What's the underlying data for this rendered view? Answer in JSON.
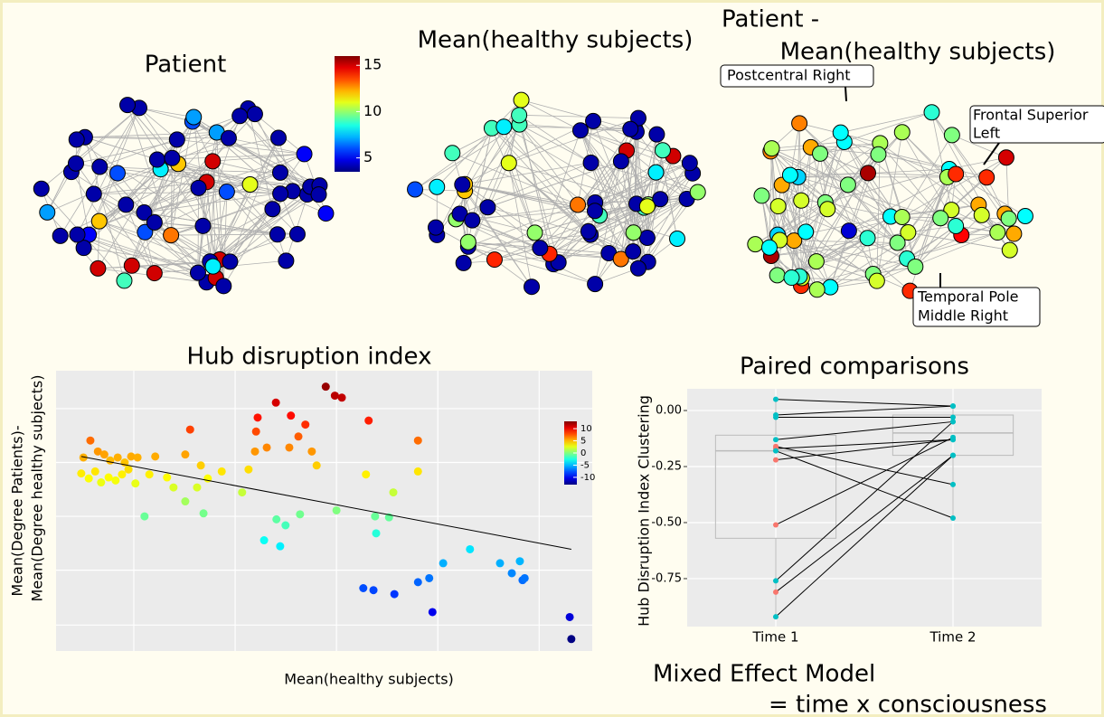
{
  "chart_data": [
    {
      "type": "network",
      "title": "Patient",
      "node_values": [
        4,
        4,
        5,
        4,
        15,
        4,
        7,
        4,
        12,
        4,
        4,
        8,
        4,
        15,
        4,
        4,
        5,
        6,
        4,
        4,
        15,
        4,
        7,
        4,
        4,
        11,
        4,
        4,
        15,
        4,
        6,
        4,
        4,
        4,
        9,
        4,
        4,
        15,
        4,
        4,
        7,
        4,
        13,
        4,
        4,
        5,
        4,
        4,
        15,
        4,
        6,
        4,
        4,
        12,
        4,
        4,
        8,
        4,
        4,
        15,
        4,
        4,
        6,
        4,
        4
      ],
      "colorbar": {
        "lim": [
          3.5,
          16
        ],
        "ticks": [
          5,
          10,
          15
        ]
      }
    },
    {
      "type": "network",
      "title": "Mean(healthy subjects)",
      "clim": [
        3.5,
        16
      ],
      "node_values": [
        4,
        4,
        9,
        8,
        13,
        14,
        4,
        10,
        7,
        4,
        9,
        4,
        11,
        15,
        4,
        4,
        8,
        10,
        4,
        4,
        12,
        4,
        9,
        8,
        4,
        4,
        13,
        4,
        4,
        10,
        9,
        4,
        6,
        4,
        4,
        11,
        4,
        4,
        10,
        4,
        4,
        4,
        15,
        9,
        4,
        12,
        4,
        10,
        4,
        4,
        8,
        4,
        14,
        4,
        4,
        9,
        4,
        10,
        4,
        4,
        4,
        11,
        4,
        4,
        9
      ]
    },
    {
      "type": "network",
      "title": [
        "Patient -",
        "Mean(healthy subjects)"
      ],
      "clim": [
        -12,
        12
      ],
      "node_values": [
        -3,
        2,
        0,
        5,
        8,
        -3,
        1,
        -2,
        5,
        0,
        -3,
        9,
        2,
        -4,
        1,
        5,
        0,
        -3,
        11,
        2,
        -2,
        0,
        6,
        -3,
        1,
        2,
        8,
        0,
        -4,
        1,
        5,
        -2,
        0,
        2,
        -3,
        10,
        1,
        0,
        5,
        -2,
        2,
        0,
        -3,
        1,
        8,
        0,
        2,
        -2,
        5,
        0,
        -10,
        1,
        2,
        -3,
        0,
        11,
        1,
        2,
        6,
        -3,
        0,
        2,
        8,
        1,
        -2
      ],
      "annotations": [
        [
          "Postcentral Right"
        ],
        [
          "Frontal Superior",
          "Left"
        ],
        [
          "Temporal Pole",
          "Middle Right"
        ]
      ]
    },
    {
      "type": "scatter",
      "title": "Hub disruption index",
      "xlabel": "Mean(healthy subjects)",
      "ylabel": [
        "Mean(Degree Patients)-",
        "Mean(Degree healthy subjects)"
      ],
      "xlim": [
        0,
        100
      ],
      "ylim": [
        -14.1,
        14
      ],
      "xticks": [
        14.5,
        33.4,
        52.3,
        71.2,
        90.1
      ],
      "yticks": [
        10.2,
        4.8,
        -0.6,
        -6,
        -11.5
      ],
      "grid": true,
      "x": [
        5.1,
        6.4,
        7.8,
        9.0,
        10.1,
        11.5,
        12.8,
        14.0,
        15.2,
        4.7,
        6.1,
        7.3,
        8.4,
        9.8,
        11.1,
        12.3,
        13.5,
        14.8,
        17.4,
        18.5,
        20.7,
        21.9,
        24.1,
        26.3,
        27.0,
        28.3,
        30.9,
        25.0,
        16.5,
        24.1,
        27.5,
        34.7,
        35.9,
        37.3,
        37.1,
        37.6,
        41.0,
        39.3,
        43.5,
        45.2,
        46.5,
        47.7,
        43.8,
        50.3,
        52.0,
        53.3,
        48.6,
        52.3,
        58.3,
        57.8,
        62.9,
        67.5,
        67.5,
        59.5,
        62.1,
        41.1,
        42.8,
        45.5,
        38.8,
        41.8,
        59.7,
        57.3,
        59.2,
        63.1,
        67.5,
        69.6,
        72.2,
        77.2,
        70.2,
        82.8,
        85.0,
        86.5,
        87.0,
        87.4,
        95.8,
        96.1
      ],
      "values": [
        5.3,
        7.0,
        5.9,
        5.6,
        5.0,
        5.3,
        4.8,
        5.4,
        5.3,
        3.7,
        3.2,
        3.9,
        2.8,
        3.3,
        3.0,
        3.6,
        4.1,
        2.7,
        3.6,
        5.4,
        3.3,
        2.3,
        5.6,
        2.3,
        4.5,
        3.2,
        3.9,
        8.1,
        -0.6,
        0.9,
        -0.3,
        1.8,
        4.1,
        7.9,
        5.9,
        9.3,
        10.8,
        6.3,
        6.3,
        7.4,
        8.6,
        5.9,
        9.5,
        12.4,
        11.5,
        11.3,
        4.5,
        0.0,
        9.0,
        3.6,
        1.8,
        7.0,
        3.9,
        -0.6,
        -0.7,
        -0.9,
        -1.5,
        -0.4,
        -3.0,
        -3.6,
        -2.3,
        -7.8,
        -8.0,
        -8.4,
        -7.2,
        -6.8,
        -5.3,
        -3.9,
        -10.2,
        -5.3,
        -6.3,
        -5.1,
        -7.0,
        -6.8,
        -10.7,
        -12.9
      ],
      "trend": {
        "x": [
          4.7,
          96.1
        ],
        "y": [
          5.4,
          -3.9
        ]
      },
      "colorbar": {
        "lim": [
          -13,
          13
        ],
        "ticks": [
          10,
          5,
          0,
          -5,
          -10
        ]
      }
    },
    {
      "type": "paired",
      "title": "Paired comparisons",
      "ylabel": "Hub Disruption Index Clustering",
      "categories": [
        "Time 1",
        "Time 2"
      ],
      "ylim": [
        -0.964,
        0.097
      ],
      "yticks": [
        {
          "value": 0,
          "label": "0.00"
        },
        {
          "value": -0.25,
          "label": "-0.25"
        },
        {
          "value": -0.5,
          "label": "-0.50"
        },
        {
          "value": -0.75,
          "label": "-0.75"
        }
      ],
      "boxes": [
        {
          "min": -0.92,
          "q1": -0.57,
          "median": -0.18,
          "q3": -0.11,
          "max": 0.05
        },
        {
          "min": -0.48,
          "q1": -0.2,
          "median": -0.1,
          "q3": -0.02,
          "max": 0.02
        }
      ],
      "series": [
        {
          "values": [
            0.05,
            0.02
          ],
          "colors": [
            "#00BFC4",
            "#00BFC4"
          ]
        },
        {
          "values": [
            -0.02,
            0.02
          ],
          "colors": [
            "#00BFC4",
            "#00BFC4"
          ]
        },
        {
          "values": [
            -0.03,
            -0.03
          ],
          "colors": [
            "#00BFC4",
            "#00BFC4"
          ]
        },
        {
          "values": [
            -0.13,
            -0.05
          ],
          "colors": [
            "#00BFC4",
            "#00BFC4"
          ]
        },
        {
          "values": [
            -0.16,
            -0.33
          ],
          "colors": [
            "#F8766D",
            "#00BFC4"
          ]
        },
        {
          "values": [
            -0.17,
            -0.13
          ],
          "colors": [
            "#F8766D",
            "#00BFC4"
          ]
        },
        {
          "values": [
            -0.18,
            -0.48
          ],
          "colors": [
            "#00BFC4",
            "#00BFC4"
          ]
        },
        {
          "values": [
            -0.22,
            -0.13
          ],
          "colors": [
            "#F8766D",
            "#00BFC4"
          ]
        },
        {
          "values": [
            -0.51,
            -0.12
          ],
          "colors": [
            "#F8766D",
            "#00BFC4"
          ]
        },
        {
          "values": [
            -0.76,
            -0.05
          ],
          "colors": [
            "#00BFC4",
            "#00BFC4"
          ]
        },
        {
          "values": [
            -0.81,
            -0.2
          ],
          "colors": [
            "#F8766D",
            "#00BFC4"
          ]
        },
        {
          "values": [
            -0.92,
            -0.2
          ],
          "colors": [
            "#00BFC4",
            "#00BFC4"
          ]
        }
      ]
    }
  ],
  "footer": [
    "Mixed Effect Model",
    "= time x consciousness"
  ]
}
